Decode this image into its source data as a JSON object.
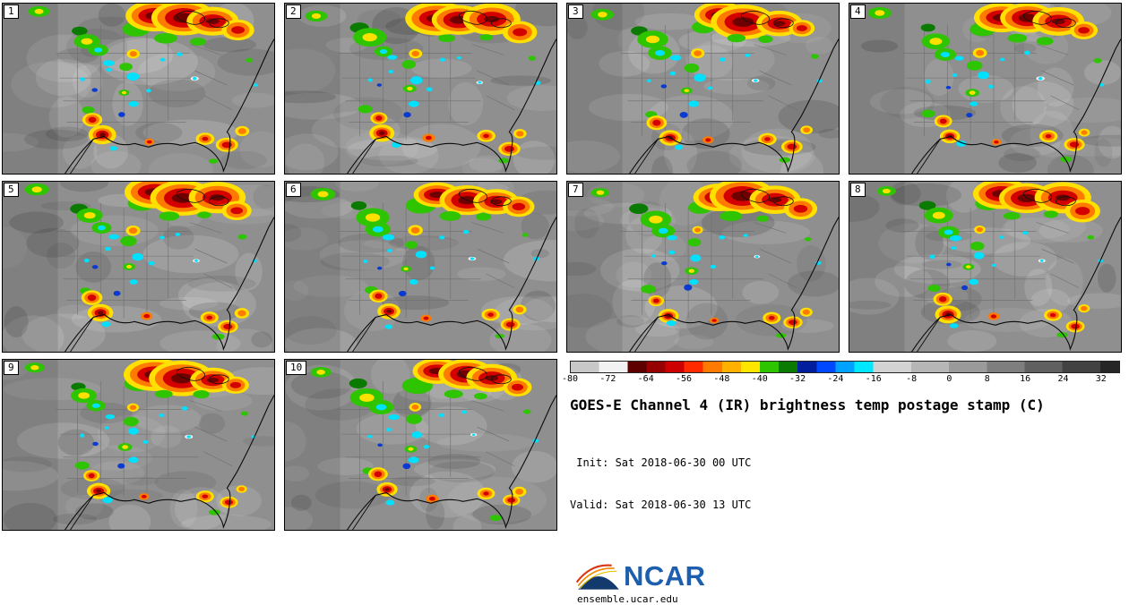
{
  "title": "GOES-E Channel 4 (IR) brightness temp postage stamp (C)",
  "time": {
    "init": " Init: Sat 2018-06-30 00 UTC",
    "valid": "Valid: Sat 2018-06-30 13 UTC"
  },
  "footer": {
    "logo_text": "NCAR",
    "logo_color": "#1d5fae",
    "url": "ensemble.ucar.edu"
  },
  "panels": [
    {
      "id": 1,
      "label": "1"
    },
    {
      "id": 2,
      "label": "2"
    },
    {
      "id": 3,
      "label": "3"
    },
    {
      "id": 4,
      "label": "4"
    },
    {
      "id": 5,
      "label": "5"
    },
    {
      "id": 6,
      "label": "6"
    },
    {
      "id": 7,
      "label": "7"
    },
    {
      "id": 8,
      "label": "8"
    },
    {
      "id": 9,
      "label": "9"
    },
    {
      "id": 10,
      "label": "10"
    }
  ],
  "colorbar": {
    "units": "C",
    "min": -80,
    "max": 36,
    "ticks": [
      -80,
      -72,
      -64,
      -56,
      -48,
      -40,
      -32,
      -24,
      -16,
      -8,
      0,
      8,
      16,
      24,
      32
    ],
    "segments": [
      {
        "from": -80,
        "to": -74,
        "color": "#c8c8c8"
      },
      {
        "from": -74,
        "to": -68,
        "color": "#f2f2f2"
      },
      {
        "from": -68,
        "to": -64,
        "color": "#5f0000"
      },
      {
        "from": -64,
        "to": -60,
        "color": "#960000"
      },
      {
        "from": -60,
        "to": -56,
        "color": "#cc0000"
      },
      {
        "from": -56,
        "to": -52,
        "color": "#ff2a00"
      },
      {
        "from": -52,
        "to": -48,
        "color": "#ff7a00"
      },
      {
        "from": -48,
        "to": -44,
        "color": "#ffb000"
      },
      {
        "from": -44,
        "to": -40,
        "color": "#ffe600"
      },
      {
        "from": -40,
        "to": -36,
        "color": "#2fc400"
      },
      {
        "from": -36,
        "to": -32,
        "color": "#0b7a00"
      },
      {
        "from": -32,
        "to": -28,
        "color": "#001e9e"
      },
      {
        "from": -28,
        "to": -24,
        "color": "#0048ff"
      },
      {
        "from": -24,
        "to": -20,
        "color": "#00a2ff"
      },
      {
        "from": -20,
        "to": -16,
        "color": "#00e8ff"
      },
      {
        "from": -16,
        "to": -8,
        "color": "#d2d2d2"
      },
      {
        "from": -8,
        "to": 0,
        "color": "#b6b6b6"
      },
      {
        "from": 0,
        "to": 8,
        "color": "#9a9a9a"
      },
      {
        "from": 8,
        "to": 16,
        "color": "#7e7e7e"
      },
      {
        "from": 16,
        "to": 24,
        "color": "#606060"
      },
      {
        "from": 24,
        "to": 32,
        "color": "#424242"
      },
      {
        "from": 32,
        "to": 36,
        "color": "#262626"
      }
    ]
  }
}
